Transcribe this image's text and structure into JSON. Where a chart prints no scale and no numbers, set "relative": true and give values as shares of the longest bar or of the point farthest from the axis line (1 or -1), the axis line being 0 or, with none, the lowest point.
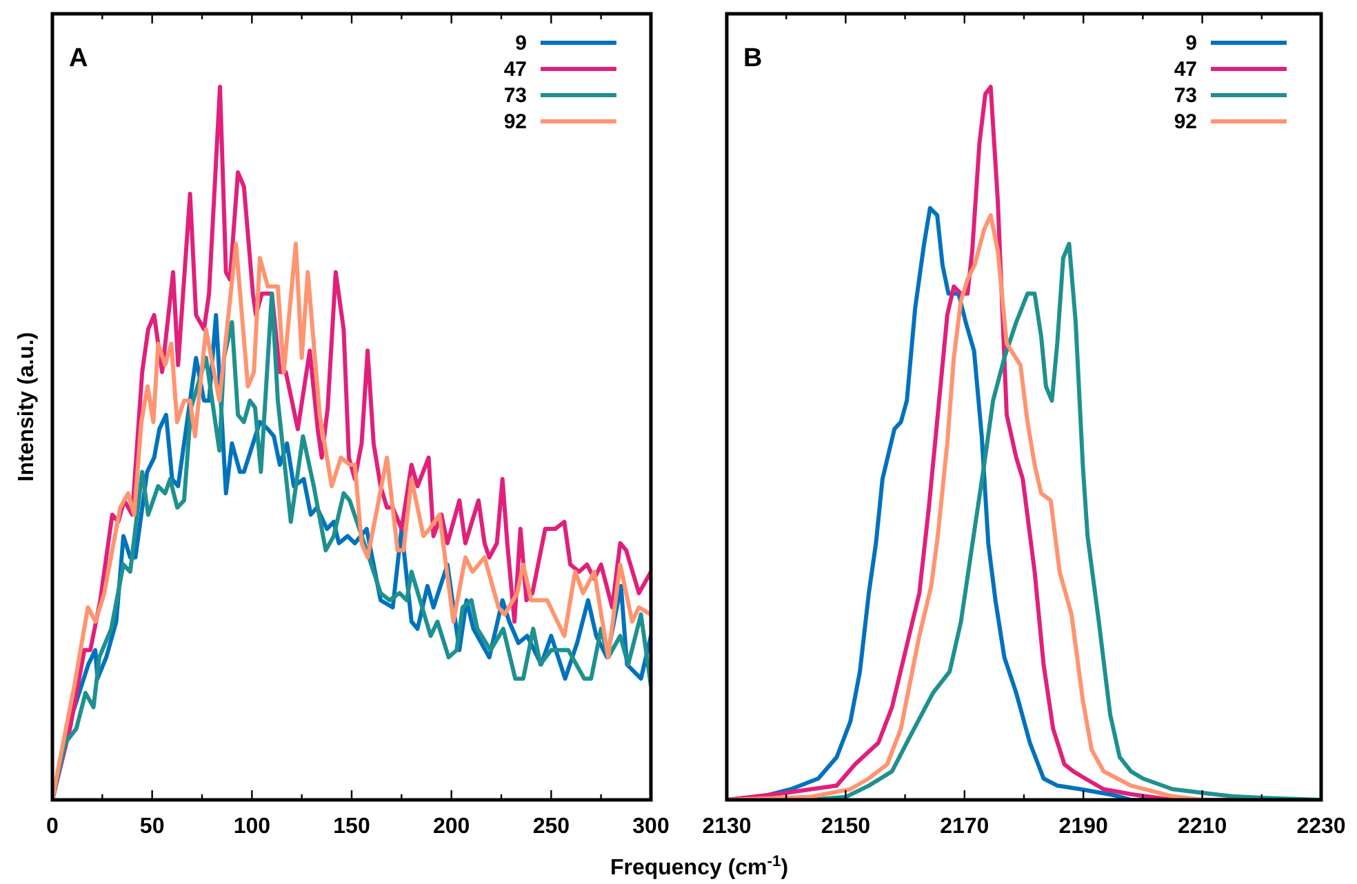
{
  "chart_data": [
    {
      "type": "line",
      "title": "A",
      "xlabel": "Frequency (cm$^{-1}$)",
      "ylabel": "Intensity (a.u.)",
      "relative": true,
      "tick_labels": "x",
      "legend": "top right",
      "xlim": [
        0,
        300
      ],
      "xticks": [
        0,
        {
          "value": 25,
          "label": null
        },
        50,
        {
          "value": 75,
          "label": null
        },
        100,
        {
          "value": 125,
          "label": null
        },
        150,
        {
          "value": 175,
          "label": null
        },
        200,
        {
          "value": 225,
          "label": null
        },
        250,
        {
          "value": 275,
          "label": null
        },
        300
      ],
      "series": [
        {
          "name": "9",
          "color": "#0072bd",
          "x": [
            0,
            6.5,
            18,
            21.5,
            22.6,
            27,
            32,
            35.6,
            39,
            41.6,
            47.5,
            51,
            53.6,
            57,
            60,
            63,
            66.5,
            72,
            76,
            78.5,
            82,
            87,
            90,
            94,
            96,
            104,
            108,
            111,
            114,
            117.6,
            121,
            126,
            129.5,
            132.6,
            137.6,
            141,
            143.6,
            148,
            151.6,
            157.5,
            164.5,
            170.6,
            175,
            180,
            183,
            188,
            191,
            198,
            204,
            207.6,
            211,
            219,
            225.6,
            229,
            233.6,
            238,
            245,
            250,
            257,
            263,
            268.5,
            272.6,
            278,
            285,
            288,
            295,
            300
          ],
          "values": [
            0,
            0.09,
            0.19,
            0.21,
            0.17,
            0.2,
            0.25,
            0.37,
            0.34,
            0.34,
            0.46,
            0.48,
            0.52,
            0.54,
            0.45,
            0.44,
            0.51,
            0.62,
            0.56,
            0.56,
            0.68,
            0.43,
            0.5,
            0.46,
            0.46,
            0.53,
            0.52,
            0.51,
            0.47,
            0.5,
            0.44,
            0.45,
            0.4,
            0.41,
            0.38,
            0.39,
            0.36,
            0.37,
            0.36,
            0.38,
            0.28,
            0.27,
            0.38,
            0.25,
            0.24,
            0.3,
            0.27,
            0.33,
            0.21,
            0.28,
            0.24,
            0.2,
            0.28,
            0.25,
            0.22,
            0.23,
            0.19,
            0.23,
            0.17,
            0.22,
            0.28,
            0.23,
            0.2,
            0.3,
            0.19,
            0.17,
            0.23
          ]
        },
        {
          "name": "47",
          "color": "#e0207a",
          "x": [
            0,
            8.8,
            16,
            19,
            24,
            30,
            33,
            36,
            40,
            45,
            48,
            51,
            55,
            60.5,
            63,
            69,
            72,
            76,
            78.5,
            84,
            87,
            89,
            93,
            96,
            100.5,
            102,
            105,
            110,
            114,
            117,
            120,
            123,
            129,
            133,
            135,
            138,
            142,
            146,
            148.6,
            151.6,
            155,
            158,
            161,
            164.5,
            167.7,
            170.6,
            175,
            180,
            183,
            188.6,
            191,
            195,
            198,
            204,
            207,
            213.6,
            216.6,
            219,
            222.8,
            225.6,
            228,
            231.6,
            234.6,
            237.6,
            240.6,
            247,
            252,
            256.6,
            259.6,
            264,
            268,
            271.6,
            275,
            280.6,
            284.6,
            287.6,
            294,
            300
          ],
          "values": [
            0,
            0.1,
            0.21,
            0.21,
            0.28,
            0.4,
            0.39,
            0.42,
            0.4,
            0.6,
            0.66,
            0.68,
            0.6,
            0.74,
            0.61,
            0.85,
            0.68,
            0.66,
            0.71,
            1,
            0.74,
            0.73,
            0.88,
            0.86,
            0.71,
            0.68,
            0.71,
            0.71,
            0.6,
            0.6,
            0.56,
            0.52,
            0.63,
            0.52,
            0.48,
            0.55,
            0.74,
            0.66,
            0.48,
            0.45,
            0.5,
            0.63,
            0.5,
            0.44,
            0.41,
            0.41,
            0.38,
            0.47,
            0.44,
            0.48,
            0.37,
            0.4,
            0.36,
            0.42,
            0.36,
            0.42,
            0.36,
            0.34,
            0.36,
            0.45,
            0.36,
            0.25,
            0.38,
            0.28,
            0.29,
            0.38,
            0.38,
            0.39,
            0.33,
            0.32,
            0.33,
            0.31,
            0.33,
            0.27,
            0.36,
            0.35,
            0.29,
            0.32
          ]
        },
        {
          "name": "73",
          "color": "#1f9090",
          "x": [
            0,
            6.5,
            12,
            16.6,
            20.6,
            23.5,
            29.5,
            35.6,
            39,
            45,
            48,
            53,
            56.5,
            59,
            62.6,
            66,
            69.5,
            77,
            83.7,
            86,
            90,
            93,
            96,
            99,
            101.6,
            104.5,
            110,
            113,
            119.5,
            125.6,
            131,
            137,
            141,
            146,
            149,
            157.5,
            164.5,
            169,
            174,
            177.6,
            180,
            189.6,
            193,
            198.6,
            202.6,
            205.6,
            210,
            213,
            219.6,
            226,
            232,
            236,
            241,
            244.6,
            250,
            258.6,
            266.6,
            270,
            275,
            278.6,
            284.6,
            288.6,
            295,
            300
          ],
          "values": [
            0,
            0.08,
            0.1,
            0.15,
            0.13,
            0.2,
            0.24,
            0.33,
            0.32,
            0.46,
            0.4,
            0.44,
            0.43,
            0.45,
            0.41,
            0.42,
            0.55,
            0.62,
            0.49,
            0.62,
            0.67,
            0.54,
            0.53,
            0.56,
            0.55,
            0.46,
            0.71,
            0.56,
            0.39,
            0.51,
            0.44,
            0.35,
            0.37,
            0.43,
            0.42,
            0.35,
            0.29,
            0.28,
            0.29,
            0.28,
            0.32,
            0.23,
            0.25,
            0.2,
            0.21,
            0.27,
            0.28,
            0.24,
            0.21,
            0.24,
            0.17,
            0.17,
            0.24,
            0.19,
            0.21,
            0.21,
            0.17,
            0.17,
            0.24,
            0.2,
            0.23,
            0.19,
            0.26,
            0.16
          ]
        },
        {
          "name": "92",
          "color": "#ff9470",
          "x": [
            0,
            4,
            11,
            17.8,
            21.6,
            26,
            34,
            38,
            41,
            44.6,
            47.7,
            50.6,
            53,
            56.5,
            59.6,
            62.5,
            66,
            69,
            71.5,
            77,
            83.7,
            92,
            98,
            101,
            104,
            108,
            113,
            116,
            122,
            125,
            128,
            134,
            140,
            144.6,
            149,
            151.6,
            155,
            158,
            167.7,
            173,
            176,
            180,
            186,
            189,
            194,
            201,
            207,
            210.6,
            216.6,
            223.6,
            226.6,
            233,
            236,
            240,
            248,
            256.6,
            262,
            266,
            271.6,
            278.6,
            284.6,
            290.6,
            294,
            300
          ],
          "values": [
            0,
            0.06,
            0.16,
            0.27,
            0.25,
            0.29,
            0.41,
            0.43,
            0.4,
            0.53,
            0.58,
            0.53,
            0.64,
            0.61,
            0.64,
            0.53,
            0.56,
            0.56,
            0.51,
            0.66,
            0.56,
            0.78,
            0.58,
            0.6,
            0.76,
            0.72,
            0.72,
            0.6,
            0.78,
            0.62,
            0.74,
            0.54,
            0.44,
            0.48,
            0.47,
            0.47,
            0.36,
            0.34,
            0.48,
            0.35,
            0.35,
            0.45,
            0.37,
            0.38,
            0.4,
            0.25,
            0.34,
            0.32,
            0.34,
            0.27,
            0.26,
            0.29,
            0.33,
            0.28,
            0.28,
            0.23,
            0.32,
            0.29,
            0.32,
            0.2,
            0.33,
            0.25,
            0.27,
            0.26
          ]
        }
      ]
    },
    {
      "type": "line",
      "title": "B",
      "relative": true,
      "tick_labels": "x",
      "legend": "top right",
      "xlim": [
        2130,
        2230
      ],
      "xticks": [
        2130,
        {
          "value": 2140,
          "label": null
        },
        2150,
        {
          "value": 2160,
          "label": null
        },
        2170,
        {
          "value": 2180,
          "label": null
        },
        2190,
        {
          "value": 2200,
          "label": null
        },
        2210,
        {
          "value": 2220,
          "label": null
        },
        2230
      ],
      "series": [
        {
          "name": "9",
          "color": "#0072bd",
          "x": [
            2130,
            2136.1,
            2140.8,
            2145.4,
            2148.5,
            2150.8,
            2152.4,
            2153.9,
            2155.1,
            2156.2,
            2158.2,
            2159.3,
            2160.3,
            2161.7,
            2163.2,
            2164.2,
            2165.4,
            2166.3,
            2167.3,
            2169,
            2170.2,
            2171.6,
            2172.9,
            2174,
            2175.2,
            2176.7,
            2178.7,
            2181,
            2183.3,
            2185.6,
            2189.5,
            2194.9,
            2198,
            2230
          ],
          "values": [
            0,
            0.005,
            0.015,
            0.03,
            0.06,
            0.11,
            0.18,
            0.29,
            0.36,
            0.45,
            0.52,
            0.53,
            0.56,
            0.69,
            0.78,
            0.83,
            0.82,
            0.75,
            0.71,
            0.71,
            0.67,
            0.63,
            0.51,
            0.36,
            0.28,
            0.2,
            0.15,
            0.08,
            0.03,
            0.02,
            0.015,
            0.007,
            0,
            0
          ]
        },
        {
          "name": "47",
          "color": "#e0207a",
          "x": [
            2130,
            2140,
            2148.5,
            2151.6,
            2155.5,
            2157.8,
            2160.1,
            2162.4,
            2164,
            2165.5,
            2167.1,
            2168.2,
            2169.4,
            2170.5,
            2171.3,
            2172.5,
            2173.5,
            2174.4,
            2175.6,
            2177.1,
            2178.7,
            2179.8,
            2181.8,
            2183.3,
            2184.9,
            2186.8,
            2188.3,
            2190.3,
            2193.4,
            2198,
            2205,
            2230
          ],
          "values": [
            0,
            0.01,
            0.02,
            0.05,
            0.08,
            0.13,
            0.21,
            0.29,
            0.41,
            0.54,
            0.68,
            0.72,
            0.71,
            0.71,
            0.77,
            0.92,
            0.99,
            1,
            0.84,
            0.54,
            0.48,
            0.45,
            0.32,
            0.19,
            0.1,
            0.05,
            0.04,
            0.03,
            0.015,
            0.008,
            0,
            0
          ]
        },
        {
          "name": "73",
          "color": "#1f9090",
          "x": [
            2130,
            2143.9,
            2150,
            2153.9,
            2157.8,
            2160.9,
            2164.7,
            2167.5,
            2169.4,
            2171.7,
            2173.3,
            2174.8,
            2176.7,
            2178.7,
            2180.6,
            2181.8,
            2182.9,
            2183.7,
            2184.7,
            2185.6,
            2186.6,
            2187.6,
            2188.7,
            2189.9,
            2190.7,
            2192.6,
            2194.5,
            2196.1,
            2198,
            2200,
            2205,
            2210,
            2215,
            2220,
            2230
          ],
          "values": [
            0,
            0,
            0.004,
            0.02,
            0.04,
            0.09,
            0.15,
            0.18,
            0.25,
            0.38,
            0.47,
            0.56,
            0.62,
            0.67,
            0.71,
            0.71,
            0.65,
            0.58,
            0.56,
            0.64,
            0.76,
            0.78,
            0.67,
            0.47,
            0.37,
            0.25,
            0.12,
            0.06,
            0.04,
            0.03,
            0.015,
            0.01,
            0.005,
            0.003,
            0
          ]
        },
        {
          "name": "92",
          "color": "#ff9470",
          "x": [
            2130,
            2143.9,
            2150.8,
            2153.9,
            2157,
            2159.3,
            2162.4,
            2164.4,
            2165.5,
            2167.1,
            2168.2,
            2169.4,
            2170.5,
            2171.7,
            2173.3,
            2174.4,
            2175.6,
            2177.1,
            2179.4,
            2180.6,
            2181.8,
            2182.9,
            2184.5,
            2186,
            2188,
            2189.9,
            2191.4,
            2193.4,
            2195.7,
            2198,
            2205,
            2210
          ],
          "values": [
            0,
            0.004,
            0.015,
            0.03,
            0.05,
            0.1,
            0.23,
            0.3,
            0.37,
            0.5,
            0.62,
            0.7,
            0.73,
            0.75,
            0.8,
            0.82,
            0.77,
            0.64,
            0.61,
            0.53,
            0.47,
            0.43,
            0.42,
            0.32,
            0.26,
            0.14,
            0.07,
            0.04,
            0.03,
            0.02,
            0.005,
            0
          ]
        }
      ]
    }
  ]
}
